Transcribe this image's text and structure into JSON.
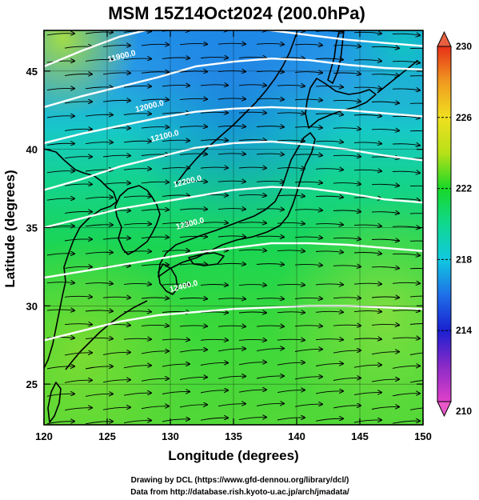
{
  "title": "MSM 15Z14Oct2024 (200.0hPa)",
  "chart_data": {
    "type": "heatmap",
    "variable_levels_note_units": "",
    "xlabel": "Longitude (degrees)",
    "ylabel": "Latitude  (degrees)",
    "xlim": [
      120,
      150
    ],
    "ylim": [
      22.4,
      47.6
    ],
    "x_ticks": [
      120,
      125,
      130,
      135,
      140,
      145,
      150
    ],
    "y_ticks": [
      25,
      30,
      35,
      40,
      45
    ],
    "x_tick_labels": [
      "120",
      "125",
      "130",
      "135",
      "140",
      "145",
      "150"
    ],
    "y_tick_labels": [
      "25",
      "30",
      "35",
      "40",
      "45"
    ],
    "colorbar": {
      "min": 210,
      "max": 230,
      "ticks": [
        210,
        214,
        218,
        222,
        226,
        230
      ],
      "tick_labels": [
        "210",
        "214",
        "218",
        "222",
        "226",
        "230"
      ]
    },
    "contours": [
      {
        "label": "11900.0",
        "lon": [
          120,
          123,
          126,
          129,
          132,
          135,
          138,
          141,
          144,
          147,
          150
        ],
        "lat": [
          45.3,
          46.3,
          47.2,
          47.8,
          48.0,
          47.9,
          47.6,
          47.3,
          47.0,
          46.8,
          46.6
        ],
        "label_lon": 126.2,
        "label_lat": 45.8
      },
      {
        "label": "12000.0",
        "lon": [
          120,
          123,
          126,
          129,
          132,
          135,
          138,
          141,
          144,
          147,
          150
        ],
        "lat": [
          42.7,
          43.4,
          44.0,
          44.6,
          45.3,
          45.6,
          45.8,
          45.7,
          45.4,
          45.2,
          45.1
        ],
        "label_lon": 128.4,
        "label_lat": 42.6
      },
      {
        "label": "12100.0",
        "lon": [
          120,
          123,
          126,
          129,
          132,
          135,
          138,
          141,
          144,
          147,
          150
        ],
        "lat": [
          40.4,
          41.0,
          41.5,
          42.0,
          42.4,
          42.6,
          42.7,
          42.6,
          42.5,
          42.3,
          42.1
        ],
        "label_lon": 129.6,
        "label_lat": 40.7
      },
      {
        "label": "12200.0",
        "lon": [
          120,
          123,
          126,
          129,
          132,
          135,
          138,
          141,
          144,
          147,
          150
        ],
        "lat": [
          37.4,
          38.1,
          38.9,
          39.5,
          40.1,
          40.4,
          40.5,
          40.3,
          40.0,
          39.6,
          39.3
        ],
        "label_lon": 131.4,
        "label_lat": 37.8
      },
      {
        "label": "12300.0",
        "lon": [
          120,
          123,
          126,
          129,
          132,
          135,
          138,
          141,
          144,
          147,
          150
        ],
        "lat": [
          35.0,
          35.6,
          36.2,
          36.6,
          37.0,
          37.4,
          37.6,
          37.5,
          37.2,
          36.8,
          36.6
        ],
        "label_lon": 131.6,
        "label_lat": 35.1
      },
      {
        "label": "12400.0",
        "lon": [
          120,
          123,
          126,
          129,
          132,
          135,
          138,
          141,
          144,
          147,
          150
        ],
        "lat": [
          31.8,
          32.2,
          32.6,
          33.0,
          33.4,
          33.7,
          34.0,
          34.0,
          33.9,
          33.7,
          33.5
        ],
        "label_lon": 131.1,
        "label_lat": 31.1
      },
      {
        "label": "",
        "lon": [
          120,
          123,
          126,
          129,
          132,
          135,
          138,
          141,
          144,
          147,
          150
        ],
        "lat": [
          27.8,
          28.4,
          29.0,
          29.4,
          29.6,
          29.8,
          29.9,
          30.0,
          30.0,
          29.9,
          29.8
        ],
        "label_lon": null,
        "label_lat": null
      }
    ]
  },
  "credits": {
    "line1": "Drawing by DCL (https://www.gfd-dennou.org/library/dcl/)",
    "line2": "Data from http://database.rish.kyoto-u.ac.jp/arch/jmadata/"
  },
  "colors": {
    "frame": "#000000",
    "contour": "#ffffff",
    "streamline": "#000000",
    "coast": "#000000"
  }
}
